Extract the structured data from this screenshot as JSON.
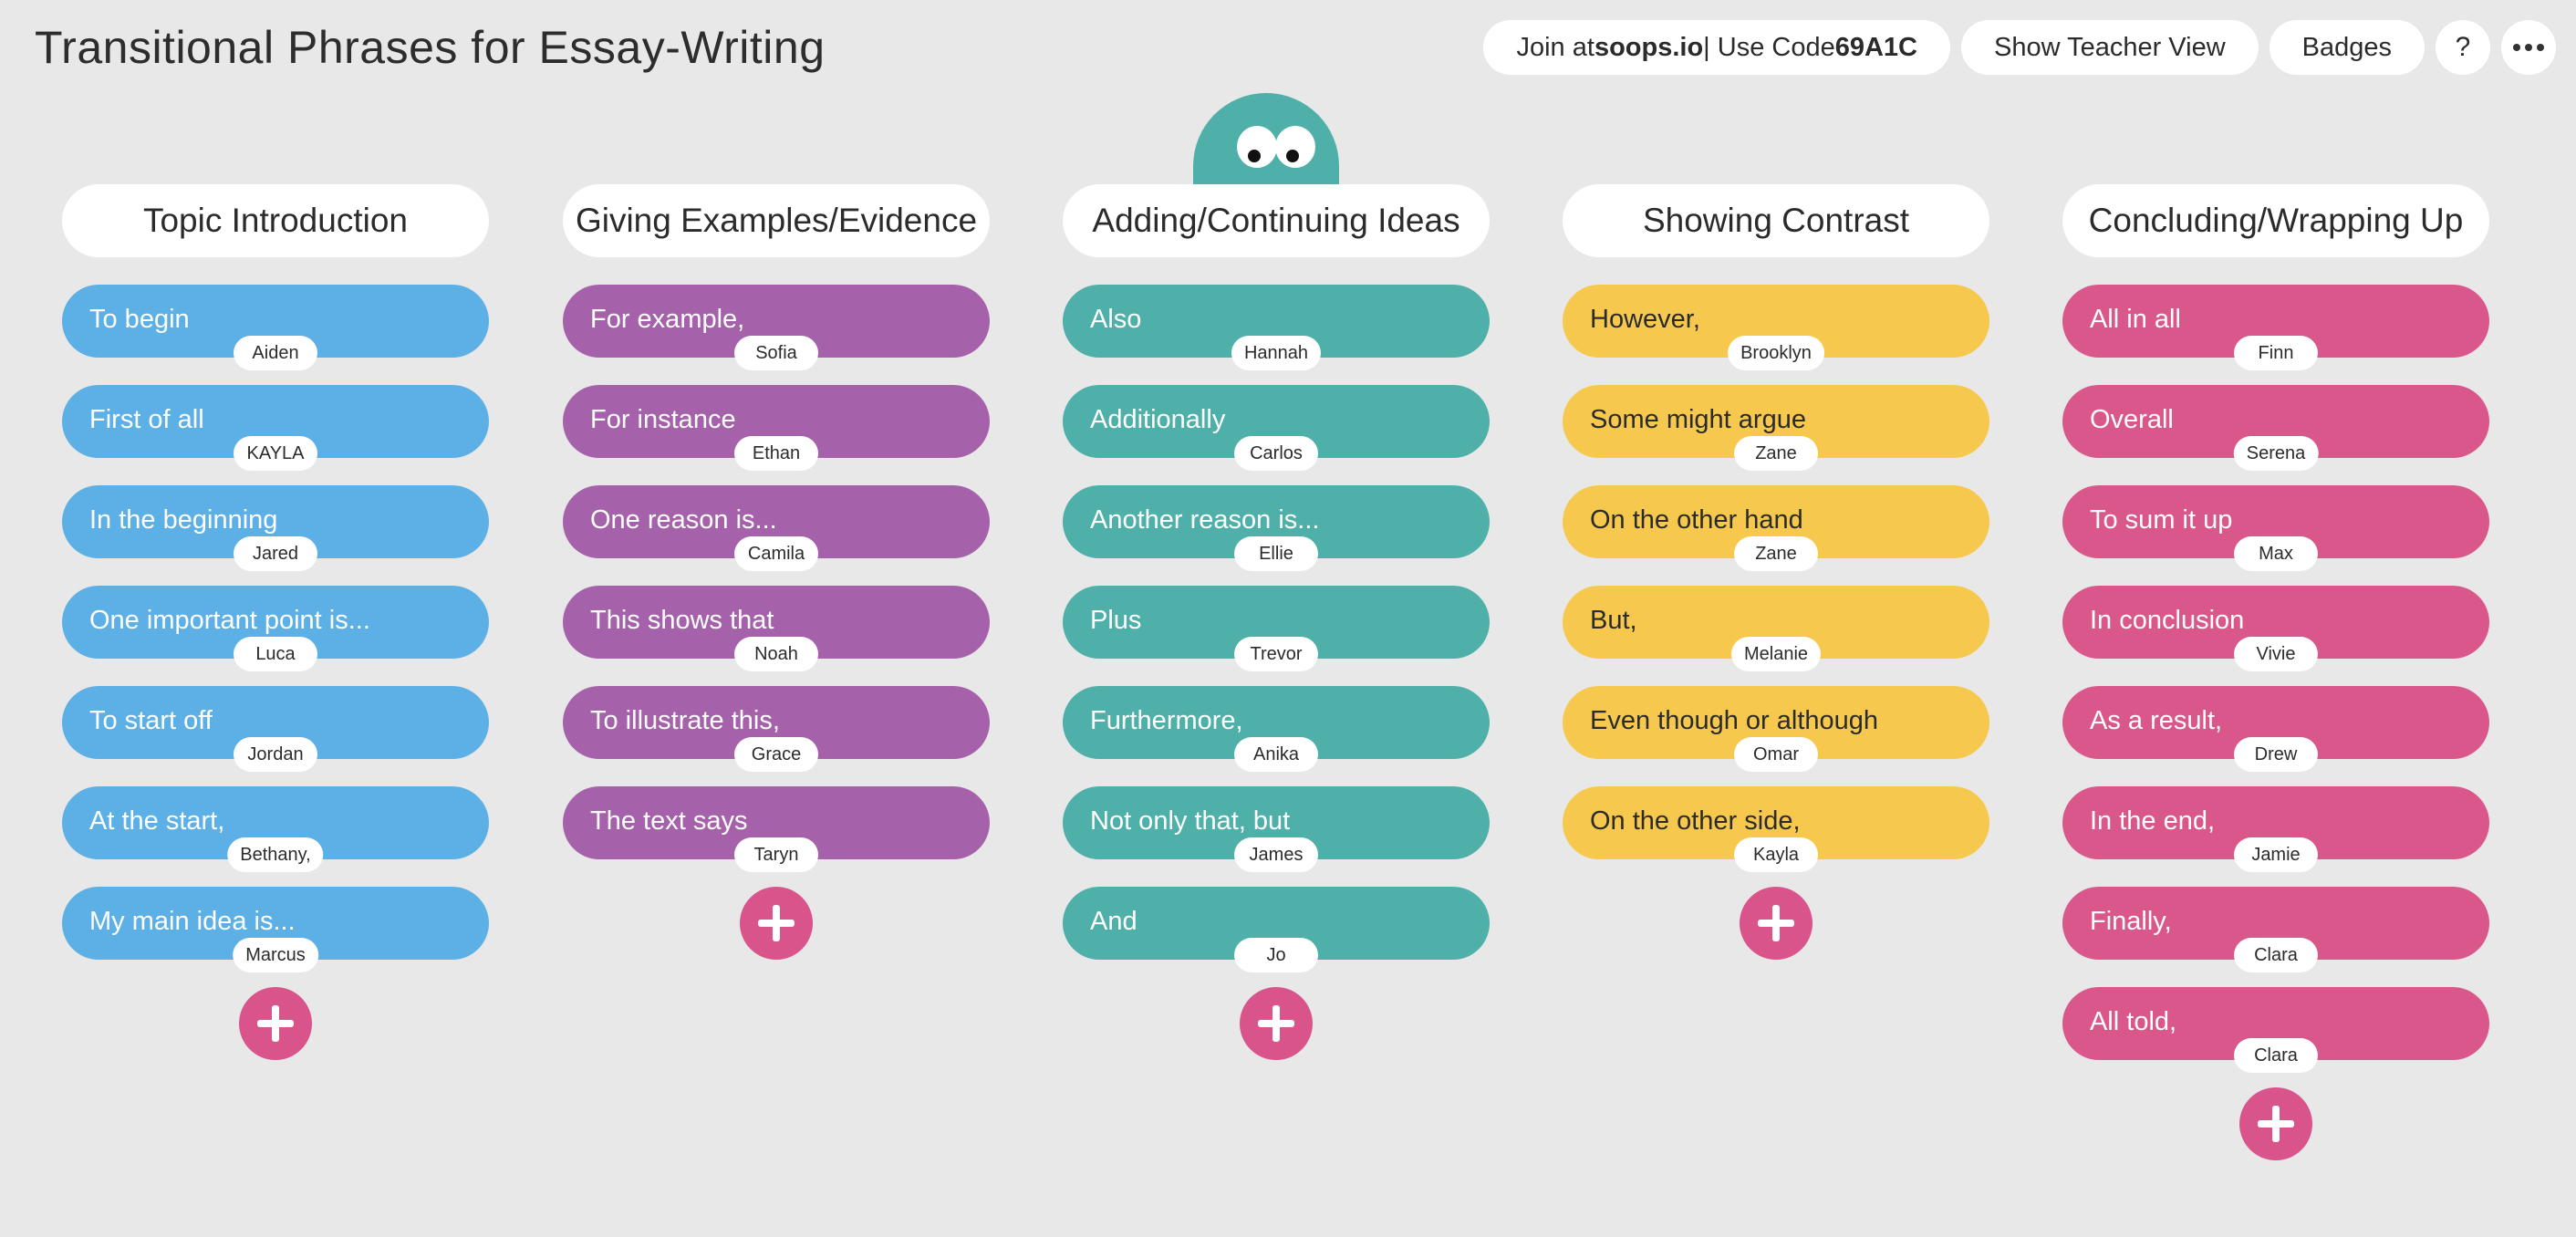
{
  "header": {
    "title": "Transitional Phrases for Essay-Writing",
    "join_prefix": "Join at ",
    "join_site": "soops.io",
    "join_mid": " | Use Code ",
    "join_code": "69A1C",
    "teacher_view": "Show Teacher View",
    "badges": "Badges",
    "help": "?",
    "more_icon": "more-horizontal-icon"
  },
  "colors": {
    "background": "#e8e8e8",
    "add_button": "#d9548a",
    "mascot": "#4eb0a9"
  },
  "columns": [
    {
      "title": "Topic Introduction",
      "color": "#5db0e6",
      "cards": [
        {
          "phrase": "To begin",
          "author": "Aiden"
        },
        {
          "phrase": "First of all",
          "author": "KAYLA"
        },
        {
          "phrase": "In the beginning",
          "author": "Jared"
        },
        {
          "phrase": "One important point is...",
          "author": "Luca"
        },
        {
          "phrase": "To start off",
          "author": "Jordan"
        },
        {
          "phrase": "At the start,",
          "author": "Bethany,"
        },
        {
          "phrase": "My main idea is...",
          "author": "Marcus"
        }
      ]
    },
    {
      "title": "Giving Examples/Evidence",
      "color": "#a661ab",
      "cards": [
        {
          "phrase": "For example,",
          "author": "Sofia"
        },
        {
          "phrase": "For instance",
          "author": "Ethan"
        },
        {
          "phrase": "One reason is...",
          "author": "Camila"
        },
        {
          "phrase": "This shows that",
          "author": "Noah"
        },
        {
          "phrase": "To illustrate this,",
          "author": "Grace"
        },
        {
          "phrase": "The text says",
          "author": "Taryn"
        }
      ]
    },
    {
      "title": "Adding/Continuing Ideas",
      "color": "#4eb0a9",
      "cards": [
        {
          "phrase": "Also",
          "author": "Hannah"
        },
        {
          "phrase": "Additionally",
          "author": "Carlos"
        },
        {
          "phrase": "Another reason is...",
          "author": "Ellie"
        },
        {
          "phrase": "Plus",
          "author": "Trevor"
        },
        {
          "phrase": "Furthermore,",
          "author": "Anika"
        },
        {
          "phrase": "Not only that, but",
          "author": "James"
        },
        {
          "phrase": "And",
          "author": "Jo"
        }
      ]
    },
    {
      "title": "Showing Contrast",
      "color": "#f6c94e",
      "text_color": "#2b2b2b",
      "cards": [
        {
          "phrase": "However,",
          "author": "Brooklyn"
        },
        {
          "phrase": "Some might argue",
          "author": "Zane"
        },
        {
          "phrase": "On the other hand",
          "author": "Zane"
        },
        {
          "phrase": "But,",
          "author": "Melanie"
        },
        {
          "phrase": "Even though or although",
          "author": "Omar"
        },
        {
          "phrase": "On the other side,",
          "author": "Kayla"
        }
      ]
    },
    {
      "title": "Concluding/Wrapping Up",
      "color": "#d9578a",
      "cards": [
        {
          "phrase": "All in all",
          "author": "Finn"
        },
        {
          "phrase": "Overall",
          "author": "Serena"
        },
        {
          "phrase": "To sum it up",
          "author": "Max"
        },
        {
          "phrase": "In conclusion",
          "author": "Vivie"
        },
        {
          "phrase": "As a result,",
          "author": "Drew"
        },
        {
          "phrase": "In the end,",
          "author": "Jamie"
        },
        {
          "phrase": "Finally,",
          "author": "Clara"
        },
        {
          "phrase": "All told,",
          "author": "Clara"
        }
      ]
    }
  ]
}
